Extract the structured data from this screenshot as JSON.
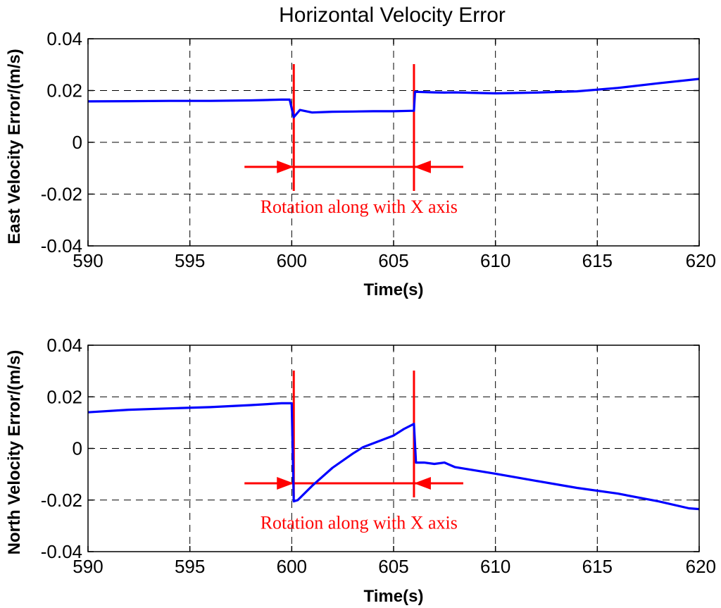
{
  "chart_data": [
    {
      "type": "line",
      "title": "Horizontal Velocity Error",
      "xlabel": "Time(s)",
      "ylabel": "East Velocity Error/(m/s)",
      "xlim": [
        590,
        620
      ],
      "ylim": [
        -0.04,
        0.04
      ],
      "xticks": [
        "590",
        "595",
        "600",
        "605",
        "610",
        "615",
        "620"
      ],
      "yticks": [
        "0.04",
        "0.02",
        "0",
        "-0.02",
        "-0.04"
      ],
      "grid": true,
      "series": [
        {
          "name": "East velocity error",
          "color": "#0000ff",
          "x": [
            590,
            592,
            594,
            596,
            598,
            599.5,
            599.9,
            600.1,
            600.4,
            601,
            602,
            603,
            604,
            605,
            606,
            606.05,
            607,
            607.5,
            608,
            610,
            612,
            614,
            616,
            618,
            620
          ],
          "y": [
            0.0158,
            0.0159,
            0.016,
            0.016,
            0.0162,
            0.0165,
            0.0165,
            0.0097,
            0.0125,
            0.0115,
            0.0118,
            0.0119,
            0.012,
            0.012,
            0.0122,
            0.0195,
            0.0193,
            0.0192,
            0.0193,
            0.0189,
            0.0192,
            0.0197,
            0.021,
            0.0228,
            0.0245
          ]
        }
      ],
      "markers": [
        {
          "type": "vertical-line",
          "x": 600.1,
          "color": "#ff0000"
        },
        {
          "type": "vertical-line",
          "x": 606.0,
          "color": "#ff0000"
        }
      ],
      "span_arrow": {
        "x_start": 600.1,
        "x_end": 606.0,
        "y": -0.0095,
        "color": "#ff0000"
      },
      "annotation": {
        "text": "Rotation along with X axis",
        "x": 603.3,
        "y": -0.025,
        "color": "#ff0000"
      }
    },
    {
      "type": "line",
      "title": "",
      "xlabel": "Time(s)",
      "ylabel": "North Velocity Error/(m/s)",
      "xlim": [
        590,
        620
      ],
      "ylim": [
        -0.04,
        0.04
      ],
      "xticks": [
        "590",
        "595",
        "600",
        "605",
        "610",
        "615",
        "620"
      ],
      "yticks": [
        "0.04",
        "0.02",
        "0",
        "-0.02",
        "-0.04"
      ],
      "grid": true,
      "series": [
        {
          "name": "North velocity error",
          "color": "#0000ff",
          "x": [
            590,
            592,
            594,
            596,
            598,
            599.5,
            600.0,
            600.1,
            600.3,
            601,
            602,
            603,
            603.5,
            604,
            605,
            605.5,
            606.0,
            606.1,
            606.5,
            607,
            607.5,
            608,
            610,
            612,
            614,
            616,
            618,
            619.5,
            620
          ],
          "y": [
            0.014,
            0.015,
            0.0155,
            0.016,
            0.0168,
            0.0175,
            0.0175,
            -0.0205,
            -0.02,
            -0.0145,
            -0.0075,
            -0.002,
            0.0005,
            0.002,
            0.005,
            0.0075,
            0.0095,
            -0.0055,
            -0.0055,
            -0.006,
            -0.0055,
            -0.0072,
            -0.0098,
            -0.0126,
            -0.0153,
            -0.0175,
            -0.0205,
            -0.0232,
            -0.0235
          ]
        }
      ],
      "markers": [
        {
          "type": "vertical-line",
          "x": 600.1,
          "color": "#ff0000"
        },
        {
          "type": "vertical-line",
          "x": 606.0,
          "color": "#ff0000"
        }
      ],
      "span_arrow": {
        "x_start": 600.1,
        "x_end": 606.0,
        "y": -0.0135,
        "color": "#ff0000"
      },
      "annotation": {
        "text": "Rotation along with X axis",
        "x": 603.3,
        "y": -0.029,
        "color": "#ff0000"
      }
    }
  ]
}
